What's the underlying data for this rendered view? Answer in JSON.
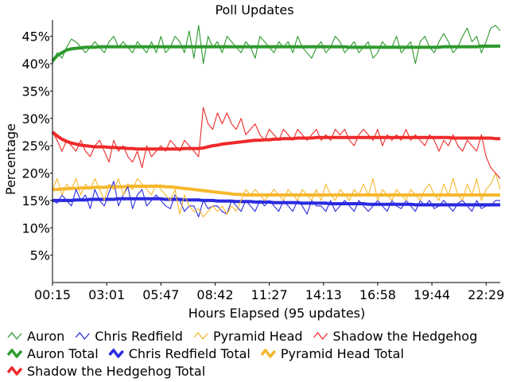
{
  "chart_data": {
    "type": "line",
    "title": "Poll Updates",
    "xlabel": "Hours Elapsed (95 updates)",
    "ylabel": "Percentage",
    "ylim": [
      0,
      48
    ],
    "yticks": [
      5,
      10,
      15,
      20,
      25,
      30,
      35,
      40,
      45
    ],
    "ytick_labels": [
      "5%",
      "10%",
      "15%",
      "20%",
      "25%",
      "30%",
      "35%",
      "40%",
      "45%"
    ],
    "xlim": [
      0,
      95
    ],
    "xticks": [
      0,
      11.5,
      23,
      34.5,
      46,
      57.5,
      69,
      80.5,
      92
    ],
    "xtick_labels": [
      "00:15",
      "03:01",
      "05:47",
      "08:42",
      "11:27",
      "14:13",
      "16:58",
      "19:44",
      "22:29"
    ],
    "grid": false,
    "legend_position": "bottom",
    "colors": {
      "auron": "#2e9a2e",
      "chris": "#2a2ae0",
      "pyramid": "#f5b82e",
      "shadow": "#ee2a2a"
    },
    "series": [
      {
        "key": "auron",
        "name": "Auron",
        "kind": "update",
        "color": "#2e9a2e",
        "values": [
          40,
          42,
          41,
          43,
          44.5,
          44,
          43,
          42,
          43,
          44,
          43,
          42,
          44,
          45,
          43,
          44,
          43,
          42,
          44,
          43,
          42,
          44,
          42,
          45,
          42,
          43,
          45,
          44,
          42,
          46,
          41,
          47,
          40,
          45,
          43,
          44,
          42,
          45,
          44,
          43,
          42,
          44,
          43,
          41,
          45,
          44,
          43,
          42,
          44,
          43,
          44,
          42,
          45,
          43,
          42,
          41,
          43,
          44,
          42,
          43,
          45,
          44,
          42,
          43,
          44,
          42,
          43,
          44,
          41,
          42,
          44,
          43,
          43,
          45,
          42,
          43,
          44,
          40,
          44,
          45,
          43,
          42,
          44,
          45.5,
          44,
          42,
          43,
          45,
          46.5,
          44,
          45,
          42,
          44,
          46.5,
          47,
          46
        ]
      },
      {
        "key": "chris",
        "name": "Chris Redfield",
        "kind": "update",
        "color": "#2a2ae0",
        "values": [
          15,
          14.5,
          16,
          15,
          14,
          17,
          15,
          16,
          13.5,
          17,
          15,
          14,
          16.5,
          18.5,
          14,
          16,
          17.5,
          13.5,
          16,
          17,
          14,
          15,
          16,
          15,
          14,
          13.5,
          16,
          15,
          13,
          14,
          14,
          12,
          15,
          13.5,
          14,
          14,
          13,
          12.5,
          15,
          14,
          13,
          15,
          14,
          13,
          15,
          14,
          15,
          14,
          13,
          15,
          14,
          13,
          15,
          14,
          12.5,
          15,
          14,
          14,
          13,
          15,
          13,
          14,
          15,
          14,
          13,
          15,
          14,
          13,
          14,
          15,
          14,
          13,
          15,
          14,
          13.5,
          15,
          14,
          13,
          15,
          14,
          15,
          13.5,
          14,
          15,
          14,
          13,
          14.5,
          15,
          14,
          13,
          15,
          13.5,
          14,
          14,
          15,
          15
        ]
      },
      {
        "key": "pyramid",
        "name": "Pyramid Head",
        "kind": "update",
        "color": "#f5b82e",
        "values": [
          17,
          19,
          16,
          18,
          17,
          19,
          16,
          18,
          17,
          19,
          17,
          15,
          18,
          17,
          19,
          16,
          18,
          17,
          19,
          18,
          17,
          16,
          18,
          17,
          16,
          15,
          17,
          12.5,
          16,
          14,
          13,
          13.5,
          12,
          13,
          14,
          13,
          14,
          12.5,
          14,
          13,
          15,
          17,
          16,
          17,
          16,
          15,
          16,
          17,
          16,
          15,
          17,
          16,
          15,
          17,
          16,
          15,
          17,
          15,
          18,
          16,
          15,
          17,
          16,
          15,
          17,
          16,
          18,
          16,
          19,
          15,
          17,
          16,
          15,
          17,
          16,
          15,
          17,
          16,
          15,
          17,
          18,
          16,
          15,
          18,
          16,
          19,
          16,
          15,
          18,
          16,
          19,
          15,
          17,
          18,
          20,
          17
        ]
      },
      {
        "key": "shadow",
        "name": "Shadow the Hedgehog",
        "kind": "update",
        "color": "#ee2a2a",
        "values": [
          27.5,
          26,
          24,
          26,
          25,
          24,
          26,
          24,
          23,
          25,
          26,
          24,
          22,
          26,
          24,
          25,
          23,
          22,
          24,
          21,
          25,
          23,
          24,
          25,
          24,
          26,
          25,
          24,
          26,
          25,
          24,
          23,
          32,
          29,
          28,
          31,
          29,
          31,
          29,
          28,
          30,
          27,
          28,
          29,
          27,
          26,
          28,
          27,
          26,
          28,
          27,
          26,
          28,
          27,
          26,
          27,
          28,
          26,
          27,
          26,
          28,
          27,
          28,
          26,
          25,
          27,
          28,
          27,
          26,
          28,
          25,
          27,
          26,
          27,
          26,
          28,
          26,
          27,
          26,
          25,
          27,
          26,
          24,
          26,
          25,
          27,
          25,
          24,
          26,
          25,
          24,
          27,
          23,
          21,
          20,
          19
        ]
      },
      {
        "key": "auron",
        "name": "Auron Total",
        "kind": "total",
        "color": "#2e9a2e",
        "values": [
          40.5,
          41.5,
          42,
          42.5,
          42.7,
          42.8,
          42.9,
          43,
          43,
          43,
          43.1,
          43.1,
          43.1,
          43.1,
          43.1,
          43.1,
          43.1,
          43.1,
          43.1,
          43.1,
          43.1,
          43.1,
          43.1,
          43.1,
          43.1,
          43.1,
          43.1,
          43.1,
          43.1,
          43.1,
          43.1,
          43.1,
          43.1,
          43.1,
          43.1,
          43.1,
          43.1,
          43.1,
          43.1,
          43.1,
          43.1,
          43.1,
          43.1,
          43.1,
          43.1,
          43.1,
          43.1,
          43.1,
          43.1,
          43.1,
          43.1,
          43.1,
          43.1,
          43.1,
          43.1,
          43.1,
          43.1,
          43.1,
          43.1,
          43.1,
          43.1,
          43.1,
          43.1,
          43,
          43,
          43,
          43,
          43,
          43,
          43,
          43,
          43,
          43,
          43,
          43,
          43,
          43,
          43,
          43,
          43,
          43,
          43,
          43,
          43.1,
          43.1,
          43.1,
          43.1,
          43.1,
          43.1,
          43.1,
          43.1,
          43.2,
          43.2,
          43.2,
          43.2,
          43.2
        ]
      },
      {
        "key": "chris",
        "name": "Chris Redfield Total",
        "kind": "total",
        "color": "#2a2ae0",
        "values": [
          15,
          15,
          15,
          15,
          15,
          15.1,
          15.1,
          15.1,
          15.2,
          15.2,
          15.2,
          15.2,
          15.2,
          15.2,
          15.3,
          15.3,
          15.3,
          15.3,
          15.3,
          15.3,
          15.3,
          15.3,
          15.3,
          15.3,
          15.2,
          15.2,
          15.2,
          15.2,
          15.1,
          15.1,
          15.1,
          15.1,
          15,
          15,
          15,
          14.9,
          14.9,
          14.9,
          14.9,
          14.8,
          14.8,
          14.8,
          14.8,
          14.7,
          14.7,
          14.7,
          14.7,
          14.6,
          14.6,
          14.6,
          14.6,
          14.6,
          14.6,
          14.5,
          14.5,
          14.5,
          14.5,
          14.5,
          14.5,
          14.4,
          14.4,
          14.4,
          14.4,
          14.4,
          14.4,
          14.4,
          14.4,
          14.3,
          14.3,
          14.3,
          14.3,
          14.3,
          14.3,
          14.3,
          14.3,
          14.3,
          14.3,
          14.2,
          14.2,
          14.2,
          14.2,
          14.2,
          14.2,
          14.2,
          14.2,
          14.2,
          14.2,
          14.2,
          14.2,
          14.2,
          14.2,
          14.2,
          14.2,
          14.2,
          14.2,
          14.2
        ]
      },
      {
        "key": "pyramid",
        "name": "Pyramid Head Total",
        "kind": "total",
        "color": "#f5b82e",
        "values": [
          17,
          17,
          17.1,
          17.1,
          17.2,
          17.2,
          17.3,
          17.3,
          17.3,
          17.4,
          17.4,
          17.4,
          17.5,
          17.5,
          17.5,
          17.5,
          17.6,
          17.6,
          17.6,
          17.6,
          17.6,
          17.6,
          17.6,
          17.6,
          17.5,
          17.5,
          17.4,
          17.3,
          17.2,
          17.1,
          17,
          16.9,
          16.8,
          16.7,
          16.6,
          16.5,
          16.4,
          16.3,
          16.2,
          16.1,
          16.1,
          16,
          16,
          16,
          16,
          16,
          16,
          16,
          16,
          16,
          16,
          16,
          16,
          16,
          16,
          16,
          16,
          16,
          16,
          16,
          16,
          16,
          16,
          16,
          16,
          16,
          16,
          16,
          16,
          16,
          16,
          16,
          16,
          16,
          16,
          16,
          16,
          16,
          16,
          16,
          16,
          16,
          16,
          16,
          16,
          16,
          16,
          16,
          16,
          16,
          16,
          16,
          16,
          16,
          16,
          16
        ]
      },
      {
        "key": "shadow",
        "name": "Shadow the Hedgehog Total",
        "kind": "total",
        "color": "#ee2a2a",
        "values": [
          27.5,
          26.8,
          26.2,
          25.8,
          25.5,
          25.3,
          25.1,
          25,
          24.9,
          24.8,
          24.8,
          24.8,
          24.7,
          24.7,
          24.6,
          24.6,
          24.5,
          24.5,
          24.4,
          24.4,
          24.4,
          24.4,
          24.4,
          24.4,
          24.4,
          24.4,
          24.4,
          24.4,
          24.5,
          24.5,
          24.5,
          24.5,
          24.6,
          24.8,
          25,
          25.1,
          25.3,
          25.4,
          25.5,
          25.6,
          25.7,
          25.8,
          25.9,
          26,
          26,
          26.1,
          26.1,
          26.2,
          26.2,
          26.3,
          26.3,
          26.3,
          26.4,
          26.4,
          26.4,
          26.4,
          26.5,
          26.5,
          26.5,
          26.5,
          26.5,
          26.5,
          26.5,
          26.5,
          26.5,
          26.5,
          26.5,
          26.5,
          26.5,
          26.5,
          26.5,
          26.5,
          26.5,
          26.5,
          26.5,
          26.5,
          26.5,
          26.5,
          26.5,
          26.5,
          26.5,
          26.5,
          26.5,
          26.5,
          26.5,
          26.4,
          26.4,
          26.4,
          26.4,
          26.4,
          26.4,
          26.4,
          26.4,
          26.4,
          26.3,
          26.3
        ]
      }
    ]
  }
}
